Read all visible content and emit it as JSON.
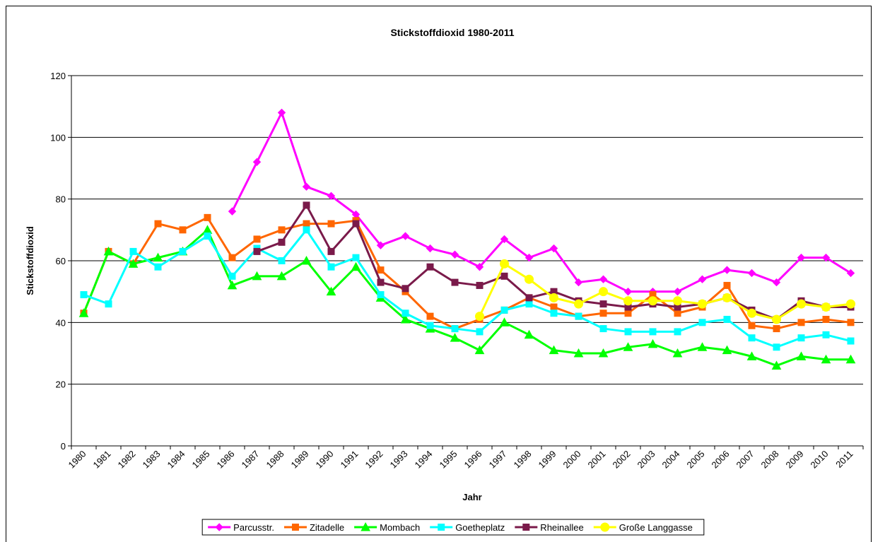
{
  "chart_data": {
    "type": "line",
    "title": "Stickstoffdioxid 1980-2011",
    "x_label": "Jahr",
    "y_label": "Stickstoffdioxid",
    "categories": [
      "1980",
      "1981",
      "1982",
      "1983",
      "1984",
      "1985",
      "1986",
      "1987",
      "1988",
      "1989",
      "1990",
      "1991",
      "1992",
      "1993",
      "1994",
      "1995",
      "1996",
      "1997",
      "1998",
      "1999",
      "2000",
      "2001",
      "2002",
      "2003",
      "2004",
      "2005",
      "2006",
      "2007",
      "2008",
      "2009",
      "2010",
      "2011"
    ],
    "ylim": [
      0,
      120
    ],
    "yticks": [
      0,
      20,
      40,
      60,
      80,
      100,
      120
    ],
    "grid": true,
    "legend": "bottom",
    "series": [
      {
        "name": "Parcusstr.",
        "color": "#ff00ff",
        "marker": "diamond",
        "values": [
          null,
          null,
          null,
          null,
          null,
          null,
          76,
          92,
          108,
          84,
          81,
          75,
          65,
          68,
          64,
          62,
          58,
          67,
          61,
          64,
          53,
          54,
          50,
          50,
          50,
          54,
          57,
          56,
          53,
          61,
          61,
          56
        ]
      },
      {
        "name": "Zitadelle",
        "color": "#ff6600",
        "marker": "square",
        "values": [
          43,
          63,
          59,
          72,
          70,
          74,
          61,
          67,
          70,
          72,
          72,
          73,
          57,
          50,
          42,
          38,
          41,
          44,
          48,
          45,
          42,
          43,
          43,
          49,
          43,
          45,
          52,
          39,
          38,
          40,
          41,
          40
        ]
      },
      {
        "name": "Mombach",
        "color": "#00ff00",
        "marker": "triangle",
        "values": [
          43,
          63,
          59,
          61,
          63,
          70,
          52,
          55,
          55,
          60,
          50,
          58,
          48,
          41,
          38,
          35,
          31,
          40,
          36,
          31,
          30,
          30,
          32,
          33,
          30,
          32,
          31,
          29,
          26,
          29,
          28,
          28
        ]
      },
      {
        "name": "Goetheplatz",
        "color": "#00ffff",
        "marker": "square",
        "values": [
          49,
          46,
          63,
          58,
          63,
          68,
          55,
          64,
          60,
          70,
          58,
          61,
          49,
          43,
          39,
          38,
          37,
          44,
          46,
          43,
          42,
          38,
          37,
          37,
          37,
          40,
          41,
          35,
          32,
          35,
          36,
          34
        ]
      },
      {
        "name": "Rheinallee",
        "color": "#7a1a4a",
        "marker": "square",
        "values": [
          null,
          null,
          null,
          null,
          null,
          null,
          null,
          63,
          66,
          78,
          63,
          72,
          53,
          51,
          58,
          53,
          52,
          55,
          48,
          50,
          47,
          46,
          45,
          46,
          45,
          46,
          48,
          44,
          41,
          47,
          45,
          45
        ]
      },
      {
        "name": "Große Langgasse",
        "color": "#ffff00",
        "marker": "circle",
        "values": [
          null,
          null,
          null,
          null,
          null,
          null,
          null,
          null,
          null,
          null,
          null,
          null,
          null,
          null,
          null,
          null,
          42,
          59,
          54,
          48,
          46,
          50,
          47,
          47,
          47,
          46,
          48,
          43,
          41,
          46,
          45,
          46
        ]
      }
    ]
  }
}
